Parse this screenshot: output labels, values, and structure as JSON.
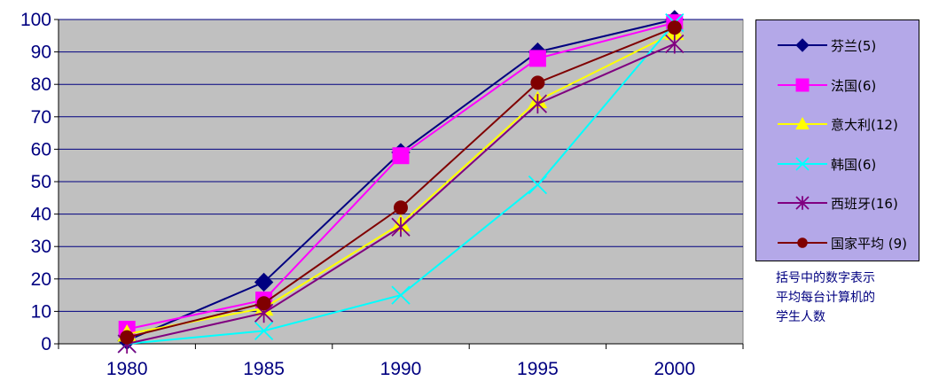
{
  "chart_data": {
    "type": "line",
    "x": [
      1980,
      1985,
      1990,
      1995,
      2000
    ],
    "categories": [
      "1980",
      "1985",
      "1990",
      "1995",
      "2000"
    ],
    "ylim": [
      0,
      100
    ],
    "yticks": [
      "0",
      "10",
      "20",
      "30",
      "40",
      "50",
      "60",
      "70",
      "80",
      "90",
      "100"
    ],
    "grid": true,
    "legend_position": "right",
    "plot_background": "#c0c0c0",
    "series": [
      {
        "name": "芬兰(5)",
        "values": [
          1,
          19,
          59,
          90,
          100
        ],
        "color": "#000080",
        "marker": "diamond"
      },
      {
        "name": "法国(6)",
        "values": [
          4.5,
          13.5,
          58,
          88,
          99
        ],
        "color": "#ff00ff",
        "marker": "square"
      },
      {
        "name": "意大利(12)",
        "values": [
          3,
          11,
          37,
          75,
          96
        ],
        "color": "#ffff00",
        "marker": "triangle"
      },
      {
        "name": "韩国(6)",
        "values": [
          0,
          4,
          15,
          49,
          99
        ],
        "color": "#00ffff",
        "marker": "x"
      },
      {
        "name": "西班牙(16)",
        "values": [
          0,
          9.5,
          36,
          74,
          92.5
        ],
        "color": "#800080",
        "marker": "star"
      },
      {
        "name": "国家平均 (9)",
        "values": [
          2,
          12.5,
          42,
          80.5,
          97.5
        ],
        "color": "#800000",
        "marker": "circle"
      }
    ]
  },
  "note": [
    "括号中的数字表示",
    "平均每台计算机的",
    "学生人数"
  ]
}
